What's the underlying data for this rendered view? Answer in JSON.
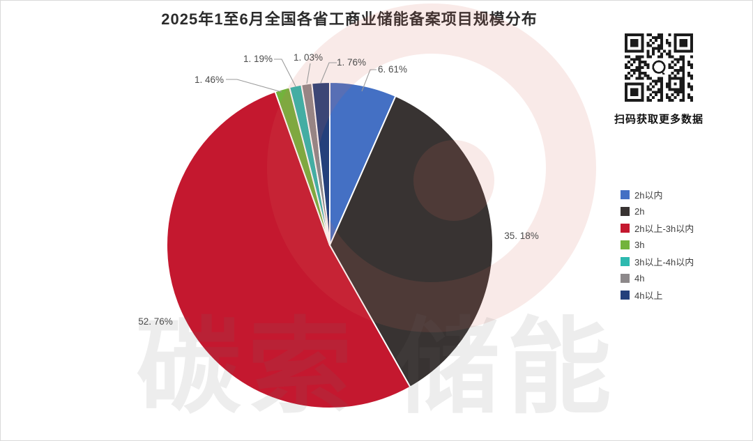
{
  "header": {
    "title": "2025年1至6月全国各省工商业储能备案项目规模分布"
  },
  "qr_panel": {
    "caption": "扫码获取更多数据",
    "qr_icon": "qr-code-with-chat-bubble-icon"
  },
  "watermark": {
    "text": "碳索 储能",
    "logo": "pink-ring-logo-watermark",
    "text_color": "rgba(110,110,110,0.12)",
    "logo_color": "rgba(215,105,95,0.14)"
  },
  "chart_data": {
    "type": "pie",
    "title": "2025年1至6月全国各省工商业储能备案项目规模分布",
    "legend_position": "right",
    "start_angle_deg": 0,
    "direction": "clockwise",
    "slices": [
      {
        "label": "2h以内",
        "value": 6.61,
        "display": "6. 61%",
        "color": "#4470C4"
      },
      {
        "label": "2h",
        "value": 35.18,
        "display": "35. 18%",
        "color": "#383332"
      },
      {
        "label": "2h以上-3h以内",
        "value": 52.76,
        "display": "52. 76%",
        "color": "#C4182F"
      },
      {
        "label": "3h",
        "value": 1.46,
        "display": "1. 46%",
        "color": "#72B33C"
      },
      {
        "label": "3h以上-4h以内",
        "value": 1.19,
        "display": "1. 19%",
        "color": "#2DB9AF"
      },
      {
        "label": "4h",
        "value": 1.03,
        "display": "1. 03%",
        "color": "#8D898B"
      },
      {
        "label": "4h以上",
        "value": 1.76,
        "display": "1. 76%",
        "color": "#24407B"
      }
    ]
  }
}
